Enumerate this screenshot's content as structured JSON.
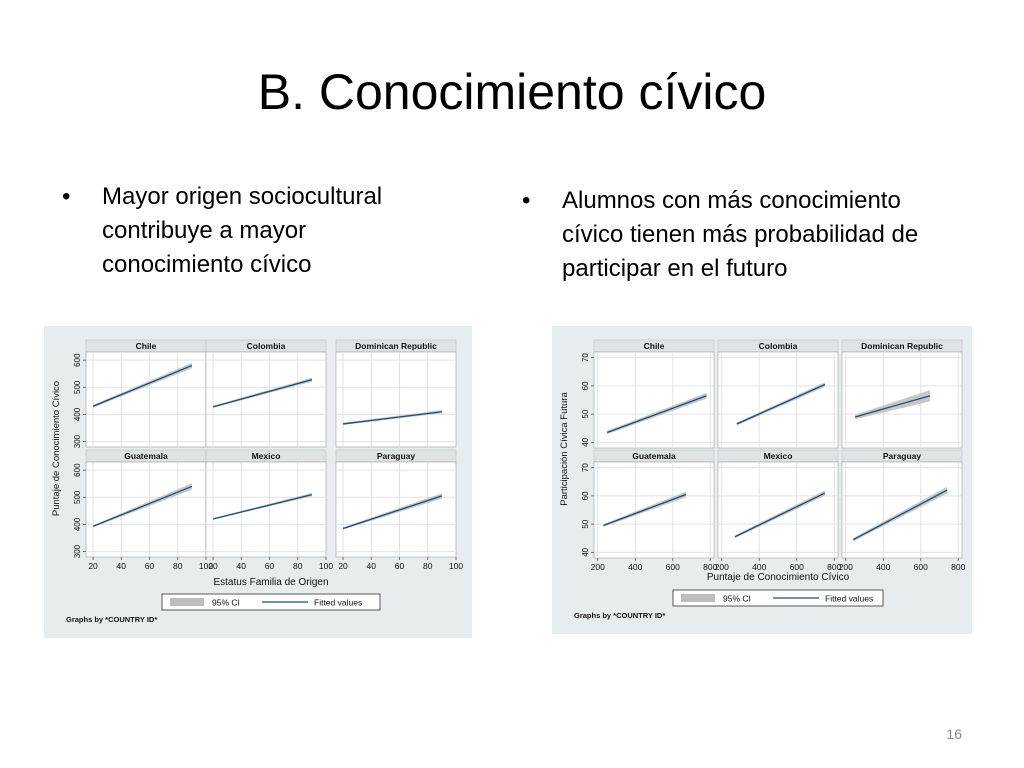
{
  "slide": {
    "title": "B. Conocimiento cívico",
    "page_number": "16"
  },
  "bullets": {
    "symbol": "•",
    "left": {
      "lines": [
        "Mayor origen sociocultural",
        "contribuye a mayor",
        "conocimiento cívico"
      ]
    },
    "right": {
      "lines": [
        "Alumnos con más conocimiento",
        "cívico tienen más probabilidad de",
        "participar en el futuro"
      ]
    }
  },
  "colors": {
    "figure_bg": "#e7ecef",
    "plot_bg": "#ffffff",
    "strip_bg": "#dfe3e6",
    "grid": "#dde3e7",
    "fitted_line": "#1f4e79",
    "ci_band": "#bdbdbd"
  },
  "chart_data": [
    {
      "type": "line",
      "layout": "facet-grid-2x3",
      "xlabel": "Estatus Familia de Origen",
      "ylabel": "Puntaje de Conocimiento Cívico",
      "xlim": [
        15,
        100
      ],
      "ylim": [
        280,
        630
      ],
      "x_ticks": [
        20,
        40,
        60,
        80,
        100
      ],
      "y_ticks": [
        300,
        400,
        500,
        600
      ],
      "grid": true,
      "legend": {
        "position": "bottom",
        "entries": [
          "95% CI",
          "Fitted values"
        ]
      },
      "note": "Graphs by *COUNTRY ID*",
      "panels": [
        {
          "name": "Chile",
          "x": [
            20,
            90
          ],
          "fitted": [
            430,
            580
          ],
          "ci_half": [
            5,
            10
          ]
        },
        {
          "name": "Colombia",
          "x": [
            20,
            90
          ],
          "fitted": [
            428,
            528
          ],
          "ci_half": [
            4,
            7
          ]
        },
        {
          "name": "Dominican Republic",
          "x": [
            20,
            90
          ],
          "fitted": [
            365,
            410
          ],
          "ci_half": [
            4,
            6
          ]
        },
        {
          "name": "Guatemala",
          "x": [
            20,
            90
          ],
          "fitted": [
            393,
            540
          ],
          "ci_half": [
            4,
            12
          ]
        },
        {
          "name": "Mexico",
          "x": [
            20,
            90
          ],
          "fitted": [
            420,
            510
          ],
          "ci_half": [
            3,
            6
          ]
        },
        {
          "name": "Paraguay",
          "x": [
            20,
            90
          ],
          "fitted": [
            385,
            505
          ],
          "ci_half": [
            4,
            10
          ]
        }
      ]
    },
    {
      "type": "line",
      "layout": "facet-grid-2x3",
      "xlabel": "Puntaje de Conocimiento Cívico",
      "ylabel": "Participación Cívica Futura",
      "xlim": [
        180,
        820
      ],
      "ylim": [
        38,
        72
      ],
      "x_ticks": [
        200,
        400,
        600,
        800
      ],
      "y_ticks": [
        40,
        50,
        60,
        70
      ],
      "grid": true,
      "legend": {
        "position": "bottom",
        "entries": [
          "95% CI",
          "Fitted values"
        ]
      },
      "note": "Graphs by *COUNTRY ID*",
      "panels": [
        {
          "name": "Chile",
          "x": [
            250,
            780
          ],
          "fitted": [
            43.5,
            56.5
          ],
          "ci_half": [
            0.6,
            1.0
          ]
        },
        {
          "name": "Colombia",
          "x": [
            280,
            750
          ],
          "fitted": [
            46.5,
            60.5
          ],
          "ci_half": [
            0.5,
            0.8
          ]
        },
        {
          "name": "Dominican Republic",
          "x": [
            250,
            650
          ],
          "fitted": [
            49,
            56.5
          ],
          "ci_half": [
            0.8,
            2.0
          ]
        },
        {
          "name": "Guatemala",
          "x": [
            230,
            670
          ],
          "fitted": [
            49.5,
            60.5
          ],
          "ci_half": [
            0.5,
            1.0
          ]
        },
        {
          "name": "Mexico",
          "x": [
            270,
            750
          ],
          "fitted": [
            45.5,
            61
          ],
          "ci_half": [
            0.5,
            0.9
          ]
        },
        {
          "name": "Paraguay",
          "x": [
            240,
            740
          ],
          "fitted": [
            44.5,
            62
          ],
          "ci_half": [
            0.6,
            1.2
          ]
        }
      ]
    }
  ]
}
